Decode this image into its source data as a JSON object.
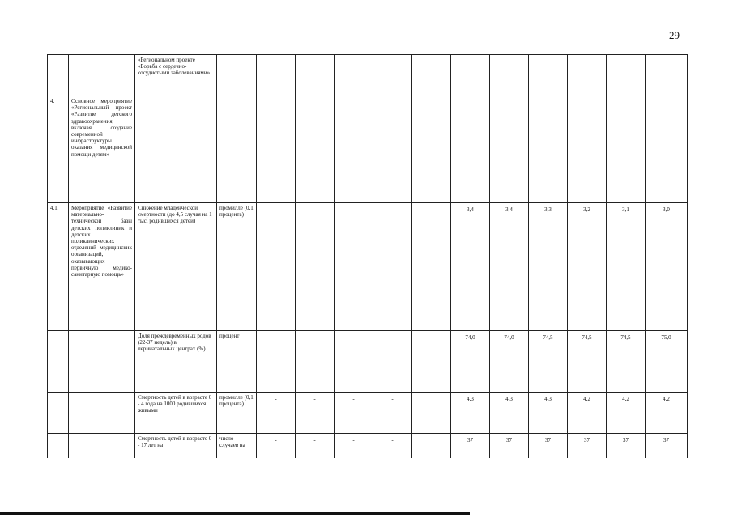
{
  "header": {
    "page_number": "29"
  },
  "table": {
    "rows": [
      [
        null,
        null,
        "«Региональном проекте «Борьба с сердечно-сосудистыми заболеваниями»",
        null,
        null,
        null,
        null,
        null,
        null,
        null,
        null,
        null,
        null,
        null,
        null
      ],
      [
        "4.",
        "Основное мероприятие «Региональный проект «Развитие детского здравоохранения, включая создание современной инфраструктуры оказания медицинской помощи детям»",
        null,
        null,
        null,
        null,
        null,
        null,
        null,
        null,
        null,
        null,
        null,
        null,
        null
      ],
      [
        "4.1.",
        "Мероприятие «Развитие материально-технической базы детских поликлиник и детских поликлинических отделений медицинских организаций, оказывающих первичную медико-санитарную помощь»",
        "Снижение младенческой смертности (до 4,5 случая на 1 тыс. родившихся детей)",
        "промилле (0,1 процента)",
        "-",
        "-",
        "-",
        "-",
        "-",
        "3,4",
        "3,4",
        "3,3",
        "3,2",
        "3,1",
        "3,0"
      ],
      [
        null,
        null,
        "Доля преждевременных родов (22-37 недель) в перинатальных центрах (%)",
        "процент",
        "-",
        "-",
        "-",
        "-",
        "-",
        "74,0",
        "74,0",
        "74,5",
        "74,5",
        "74,5",
        "75,0"
      ],
      [
        null,
        null,
        "Смертность детей в возрасте 0 - 4 года на 1000 родившихся живыми",
        "промилле (0,1 процента)",
        "-",
        "-",
        "-",
        "-",
        null,
        "4,3",
        "4,3",
        "4,3",
        "4,2",
        "4,2",
        "4,2"
      ],
      [
        null,
        null,
        "Смертность детей в возрасте 0 - 17 лет на",
        "число случаев на",
        "-",
        "-",
        "-",
        "-",
        null,
        "37",
        "37",
        "37",
        "37",
        "37",
        "37"
      ]
    ]
  }
}
